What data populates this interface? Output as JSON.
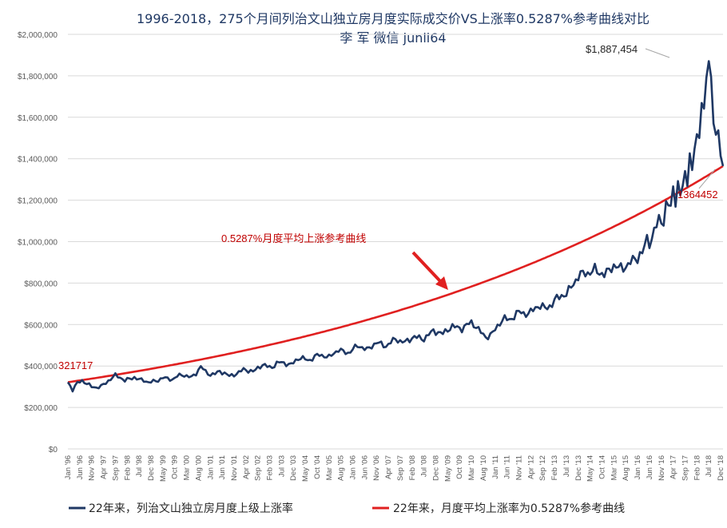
{
  "chart_data": {
    "type": "line",
    "title": "1996-2018，275个月间列治文山独立房月度实际成交价VS上涨率0.5287%参考曲线对比",
    "subtitle": "李 军   微信 junli64",
    "ylim": [
      0,
      2000000
    ],
    "yticks": [
      "$0",
      "$200,000",
      "$400,000",
      "$600,000",
      "$800,000",
      "$1,000,000",
      "$1,200,000",
      "$1,400,000",
      "$1,600,000",
      "$1,800,000",
      "$2,000,000"
    ],
    "x_labels": [
      "Jan '96",
      "Jun '96",
      "Nov '96",
      "Apr '97",
      "Sep '97",
      "Feb '98",
      "Jul '98",
      "Dec '98",
      "May '99",
      "Oct '99",
      "Mar '00",
      "Aug '00",
      "Jan '01",
      "Jun '01",
      "Nov '01",
      "Apr '02",
      "Sep '02",
      "Feb '03",
      "Jul '03",
      "Dec '03",
      "May '04",
      "Oct '04",
      "Mar '05",
      "Aug '05",
      "Jan '06",
      "Jun '06",
      "Nov '06",
      "Apr '07",
      "Sep '07",
      "Feb '08",
      "Jul '08",
      "Dec '08",
      "May '09",
      "Oct '09",
      "Mar '10",
      "Aug '10",
      "Jan '11",
      "Jun '11",
      "Nov '11",
      "Apr '12",
      "Sep '12",
      "Feb '13",
      "Jul '13",
      "Dec '13",
      "May '14",
      "Oct '14",
      "Mar '15",
      "Aug '15",
      "Jan '16",
      "Jun '16",
      "Nov '16",
      "Apr '17",
      "Sep '17",
      "Feb '18",
      "Jul '18",
      "Dec '18"
    ],
    "months": 276,
    "series": [
      {
        "name": "22年来，列治文山独立房月度上级上涨率",
        "color": "#1f3864",
        "anchors": [
          [
            0,
            321717
          ],
          [
            2,
            285000
          ],
          [
            4,
            318000
          ],
          [
            6,
            330000
          ],
          [
            8,
            315000
          ],
          [
            10,
            300000
          ],
          [
            12,
            296000
          ],
          [
            14,
            302000
          ],
          [
            16,
            318000
          ],
          [
            18,
            338000
          ],
          [
            20,
            355000
          ],
          [
            22,
            345000
          ],
          [
            24,
            330000
          ],
          [
            26,
            338000
          ],
          [
            28,
            345000
          ],
          [
            30,
            335000
          ],
          [
            32,
            330000
          ],
          [
            34,
            322000
          ],
          [
            36,
            325000
          ],
          [
            38,
            330000
          ],
          [
            40,
            345000
          ],
          [
            42,
            338000
          ],
          [
            44,
            335000
          ],
          [
            46,
            350000
          ],
          [
            48,
            358000
          ],
          [
            50,
            352000
          ],
          [
            52,
            345000
          ],
          [
            54,
            365000
          ],
          [
            56,
            398000
          ],
          [
            58,
            372000
          ],
          [
            60,
            358000
          ],
          [
            62,
            362000
          ],
          [
            64,
            375000
          ],
          [
            66,
            365000
          ],
          [
            68,
            352000
          ],
          [
            70,
            358000
          ],
          [
            72,
            368000
          ],
          [
            74,
            385000
          ],
          [
            76,
            378000
          ],
          [
            78,
            372000
          ],
          [
            80,
            392000
          ],
          [
            82,
            405000
          ],
          [
            84,
            398000
          ],
          [
            86,
            394000
          ],
          [
            88,
            412000
          ],
          [
            90,
            420000
          ],
          [
            92,
            410000
          ],
          [
            94,
            405000
          ],
          [
            96,
            428000
          ],
          [
            98,
            440000
          ],
          [
            100,
            432000
          ],
          [
            102,
            428000
          ],
          [
            104,
            445000
          ],
          [
            106,
            455000
          ],
          [
            108,
            448000
          ],
          [
            110,
            442000
          ],
          [
            112,
            462000
          ],
          [
            114,
            478000
          ],
          [
            116,
            470000
          ],
          [
            118,
            462000
          ],
          [
            120,
            480000
          ],
          [
            122,
            498000
          ],
          [
            124,
            490000
          ],
          [
            126,
            478000
          ],
          [
            128,
            495000
          ],
          [
            130,
            515000
          ],
          [
            132,
            505000
          ],
          [
            134,
            495000
          ],
          [
            136,
            515000
          ],
          [
            138,
            530000
          ],
          [
            140,
            520000
          ],
          [
            142,
            515000
          ],
          [
            144,
            528000
          ],
          [
            146,
            542000
          ],
          [
            148,
            535000
          ],
          [
            150,
            530000
          ],
          [
            152,
            552000
          ],
          [
            154,
            570000
          ],
          [
            156,
            562000
          ],
          [
            158,
            556000
          ],
          [
            160,
            575000
          ],
          [
            162,
            592000
          ],
          [
            164,
            585000
          ],
          [
            166,
            580000
          ],
          [
            168,
            598000
          ],
          [
            170,
            610000
          ],
          [
            172,
            590000
          ],
          [
            174,
            562000
          ],
          [
            176,
            540000
          ],
          [
            178,
            548000
          ],
          [
            180,
            575000
          ],
          [
            182,
            610000
          ],
          [
            184,
            630000
          ],
          [
            186,
            622000
          ],
          [
            188,
            640000
          ],
          [
            190,
            662000
          ],
          [
            192,
            655000
          ],
          [
            194,
            650000
          ],
          [
            196,
            672000
          ],
          [
            198,
            690000
          ],
          [
            200,
            684000
          ],
          [
            202,
            680000
          ],
          [
            204,
            700000
          ],
          [
            206,
            728000
          ],
          [
            208,
            740000
          ],
          [
            210,
            745000
          ],
          [
            212,
            782000
          ],
          [
            214,
            815000
          ],
          [
            216,
            842000
          ],
          [
            218,
            850000
          ],
          [
            220,
            848000
          ],
          [
            222,
            868000
          ],
          [
            224,
            850000
          ],
          [
            226,
            840000
          ],
          [
            228,
            862000
          ],
          [
            230,
            885000
          ],
          [
            232,
            875000
          ],
          [
            234,
            872000
          ],
          [
            236,
            890000
          ],
          [
            238,
            910000
          ],
          [
            240,
            920000
          ],
          [
            242,
            950000
          ],
          [
            244,
            1000000
          ],
          [
            246,
            1020000
          ],
          [
            248,
            1080000
          ],
          [
            250,
            1100000
          ],
          [
            252,
            1160000
          ],
          [
            254,
            1200000
          ],
          [
            256,
            1230000
          ],
          [
            258,
            1250000
          ],
          [
            260,
            1300000
          ],
          [
            262,
            1360000
          ],
          [
            264,
            1430000
          ],
          [
            266,
            1560000
          ],
          [
            268,
            1620000
          ],
          [
            270,
            1887454
          ],
          [
            272,
            1620000
          ],
          [
            274,
            1480000
          ],
          [
            276,
            1364452
          ]
        ]
      },
      {
        "name": "22年来，月度平均上涨率为0.5287%参考曲线",
        "color": "#e02020",
        "start": 321717,
        "end": 1364452,
        "monthly_rate": 0.005287
      }
    ],
    "annotations": {
      "start_value": "321717",
      "peak_value": "$1,887,454",
      "end_value": "1364452",
      "rate_label": "0.5287%月度平均上涨参考曲线"
    }
  }
}
